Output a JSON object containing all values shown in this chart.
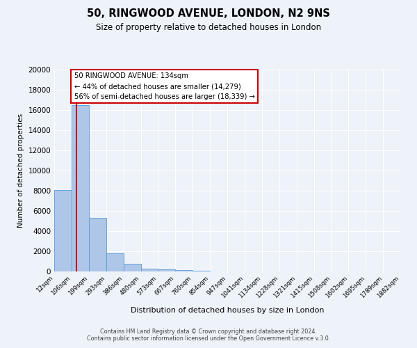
{
  "title": "50, RINGWOOD AVENUE, LONDON, N2 9NS",
  "subtitle": "Size of property relative to detached houses in London",
  "xlabel": "Distribution of detached houses by size in London",
  "ylabel": "Number of detached properties",
  "bar_color": "#aec6e8",
  "bar_edge_color": "#5b9bd5",
  "bg_color": "#eef2f9",
  "grid_color": "#ffffff",
  "red_line_x": 134,
  "annotation_title": "50 RINGWOOD AVENUE: 134sqm",
  "annotation_line1": "← 44% of detached houses are smaller (14,279)",
  "annotation_line2": "56% of semi-detached houses are larger (18,339) →",
  "annotation_box_facecolor": "#ffffff",
  "annotation_box_edgecolor": "#cc0000",
  "red_line_color": "#cc0000",
  "bin_edges": [
    12,
    106,
    199,
    293,
    386,
    480,
    573,
    667,
    760,
    854,
    947,
    1041,
    1134,
    1228,
    1321,
    1415,
    1508,
    1602,
    1695,
    1789,
    1882
  ],
  "bin_labels": [
    "12sqm",
    "106sqm",
    "199sqm",
    "293sqm",
    "386sqm",
    "480sqm",
    "573sqm",
    "667sqm",
    "760sqm",
    "854sqm",
    "947sqm",
    "1041sqm",
    "1134sqm",
    "1228sqm",
    "1321sqm",
    "1415sqm",
    "1508sqm",
    "1602sqm",
    "1695sqm",
    "1789sqm",
    "1882sqm"
  ],
  "bar_heights": [
    8100,
    16500,
    5300,
    1800,
    750,
    300,
    175,
    120,
    70,
    0,
    0,
    0,
    0,
    0,
    0,
    0,
    0,
    0,
    0,
    0
  ],
  "ylim": [
    0,
    20000
  ],
  "yticks": [
    0,
    2000,
    4000,
    6000,
    8000,
    10000,
    12000,
    14000,
    16000,
    18000,
    20000
  ],
  "footer_line1": "Contains HM Land Registry data © Crown copyright and database right 2024.",
  "footer_line2": "Contains public sector information licensed under the Open Government Licence v.3.0."
}
